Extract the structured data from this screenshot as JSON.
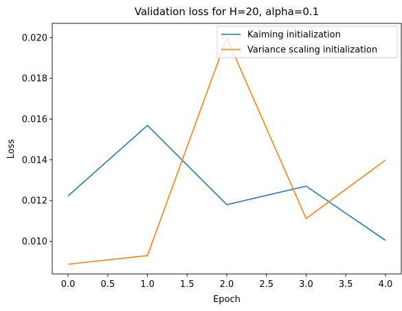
{
  "chart_data": {
    "type": "line",
    "title": "Validation loss for H=20, alpha=0.1",
    "xlabel": "Epoch",
    "ylabel": "Loss",
    "xlim": [
      -0.2,
      4.2
    ],
    "ylim": [
      0.0084,
      0.0207
    ],
    "xticks": [
      0.0,
      0.5,
      1.0,
      1.5,
      2.0,
      2.5,
      3.0,
      3.5,
      4.0
    ],
    "xtick_labels": [
      "0.0",
      "0.5",
      "1.0",
      "1.5",
      "2.0",
      "2.5",
      "3.0",
      "3.5",
      "4.0"
    ],
    "yticks": [
      0.01,
      0.012,
      0.014,
      0.016,
      0.018,
      0.02
    ],
    "ytick_labels": [
      "0.010",
      "0.012",
      "0.014",
      "0.016",
      "0.018",
      "0.020"
    ],
    "grid": false,
    "legend_position": "upper right",
    "x": [
      0,
      1,
      2,
      3,
      4
    ],
    "series": [
      {
        "name": "Kaiming initialization",
        "color": "#1f77b4",
        "values": [
          0.01223,
          0.01569,
          0.0118,
          0.01271,
          0.01005
        ]
      },
      {
        "name": "Variance scaling initialization",
        "color": "#ff7f0e",
        "values": [
          0.00888,
          0.0093,
          0.01999,
          0.01112,
          0.01399
        ]
      }
    ]
  }
}
